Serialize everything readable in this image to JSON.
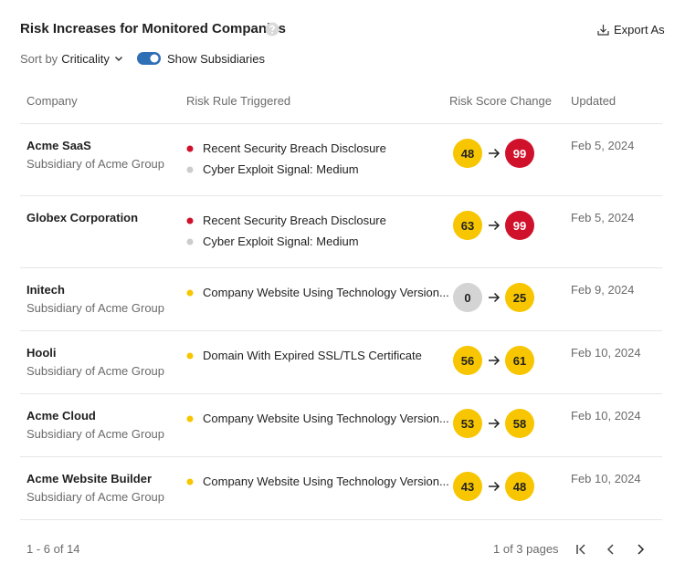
{
  "header": {
    "title": "Risk Increases for Monitored Companies",
    "export": "Export As"
  },
  "controls": {
    "sort_prefix": "Sort by",
    "sort_value": "Criticality",
    "toggle_label": "Show Subsidiaries"
  },
  "table": {
    "columns": [
      "Company",
      "Risk Rule Triggered",
      "Risk Score Change",
      "Updated"
    ],
    "rows": [
      {
        "company": "Acme SaaS",
        "subsidiary": "Subsidiary of Acme Group",
        "rules": [
          {
            "text": "Recent Security Breach Disclosure",
            "color": "#d0112b"
          },
          {
            "text": "Cyber Exploit Signal: Medium",
            "color": "#cccccc"
          }
        ],
        "from": {
          "value": 48,
          "color": "#f7c600"
        },
        "to": {
          "value": 99,
          "color": "#d0112b"
        },
        "updated": "Feb 5, 2024"
      },
      {
        "company": "Globex Corporation",
        "rules": [
          {
            "text": "Recent Security Breach Disclosure",
            "color": "#d0112b"
          },
          {
            "text": "Cyber Exploit Signal: Medium",
            "color": "#cccccc"
          }
        ],
        "from": {
          "value": 63,
          "color": "#f7c600"
        },
        "to": {
          "value": 99,
          "color": "#d0112b"
        },
        "updated": "Feb 5, 2024"
      },
      {
        "company": "Initech",
        "subsidiary": "Subsidiary of Acme Group",
        "rules": [
          {
            "text": "Company Website Using Technology Version...",
            "color": "#f7c600"
          }
        ],
        "from": {
          "value": 0,
          "color": "#d4d4d4"
        },
        "to": {
          "value": 25,
          "color": "#f7c600"
        },
        "updated": "Feb 9, 2024"
      },
      {
        "company": "Hooli",
        "subsidiary": "Subsidiary of Acme Group",
        "rules": [
          {
            "text": "Domain With Expired SSL/TLS Certificate",
            "color": "#f7c600"
          }
        ],
        "from": {
          "value": 56,
          "color": "#f7c600"
        },
        "to": {
          "value": 61,
          "color": "#f7c600"
        },
        "updated": "Feb 10, 2024"
      },
      {
        "company": "Acme Cloud",
        "subsidiary": "Subsidiary of Acme Group",
        "rules": [
          {
            "text": "Company Website Using Technology Version...",
            "color": "#f7c600"
          }
        ],
        "from": {
          "value": 53,
          "color": "#f7c600"
        },
        "to": {
          "value": 58,
          "color": "#f7c600"
        },
        "updated": "Feb 10, 2024"
      },
      {
        "company": "Acme Website Builder",
        "subsidiary": "Subsidiary of Acme Group",
        "rules": [
          {
            "text": "Company Website Using Technology Version...",
            "color": "#f7c600"
          }
        ],
        "from": {
          "value": 43,
          "color": "#f7c600"
        },
        "to": {
          "value": 48,
          "color": "#f7c600"
        },
        "updated": "Feb 10, 2024"
      }
    ]
  },
  "footer": {
    "range": "1 - 6 of 14",
    "pages": "1 of 3 pages"
  }
}
